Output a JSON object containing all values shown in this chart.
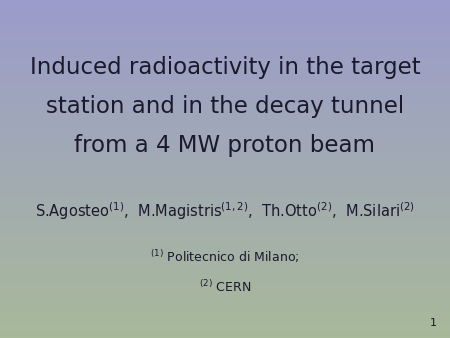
{
  "title_line1": "Induced radioactivity in the target",
  "title_line2": "station and in the decay tunnel",
  "title_line3": "from a 4 MW proton beam",
  "slide_number": "1",
  "bg_color_top": "#9b9ccc",
  "bg_color_bottom": "#a8b99a",
  "text_color": "#1a1a2e",
  "title_fontsize": 16.5,
  "author_fontsize": 10.5,
  "affil_fontsize": 9,
  "slide_num_fontsize": 8
}
